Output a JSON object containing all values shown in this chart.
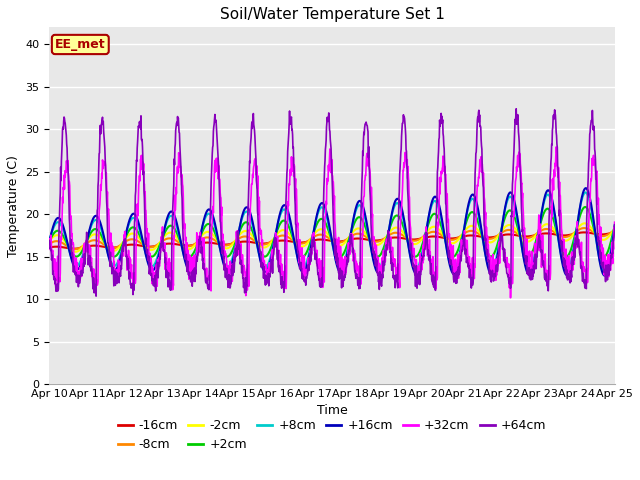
{
  "title": "Soil/Water Temperature Set 1",
  "xlabel": "Time",
  "ylabel": "Temperature (C)",
  "ylim": [
    0,
    42
  ],
  "yticks": [
    0,
    5,
    10,
    15,
    20,
    25,
    30,
    35,
    40
  ],
  "date_labels": [
    "Apr 10",
    "Apr 11",
    "Apr 12",
    "Apr 13",
    "Apr 14",
    "Apr 15",
    "Apr 16",
    "Apr 17",
    "Apr 18",
    "Apr 19",
    "Apr 20",
    "Apr 21",
    "Apr 22",
    "Apr 23",
    "Apr 24",
    "Apr 25"
  ],
  "series_order": [
    "-16cm",
    "-8cm",
    "-2cm",
    "+2cm",
    "+8cm",
    "+16cm",
    "+32cm",
    "+64cm"
  ],
  "series": {
    "-16cm": {
      "color": "#dd0000",
      "linewidth": 1.5
    },
    "-8cm": {
      "color": "#ff8800",
      "linewidth": 1.5
    },
    "-2cm": {
      "color": "#ffff00",
      "linewidth": 1.5
    },
    "+2cm": {
      "color": "#00cc00",
      "linewidth": 1.5
    },
    "+8cm": {
      "color": "#00cccc",
      "linewidth": 1.5
    },
    "+16cm": {
      "color": "#0000bb",
      "linewidth": 1.5
    },
    "+32cm": {
      "color": "#ff00ff",
      "linewidth": 1.2
    },
    "+64cm": {
      "color": "#8800bb",
      "linewidth": 1.2
    }
  },
  "annotation_text": "EE_met",
  "annotation_bg": "#ffff99",
  "annotation_border": "#aa0000",
  "plot_bg": "#e8e8e8",
  "fig_bg": "#ffffff",
  "grid_color": "#ffffff",
  "title_fontsize": 11,
  "axis_fontsize": 9,
  "tick_fontsize": 8,
  "legend_fontsize": 9
}
